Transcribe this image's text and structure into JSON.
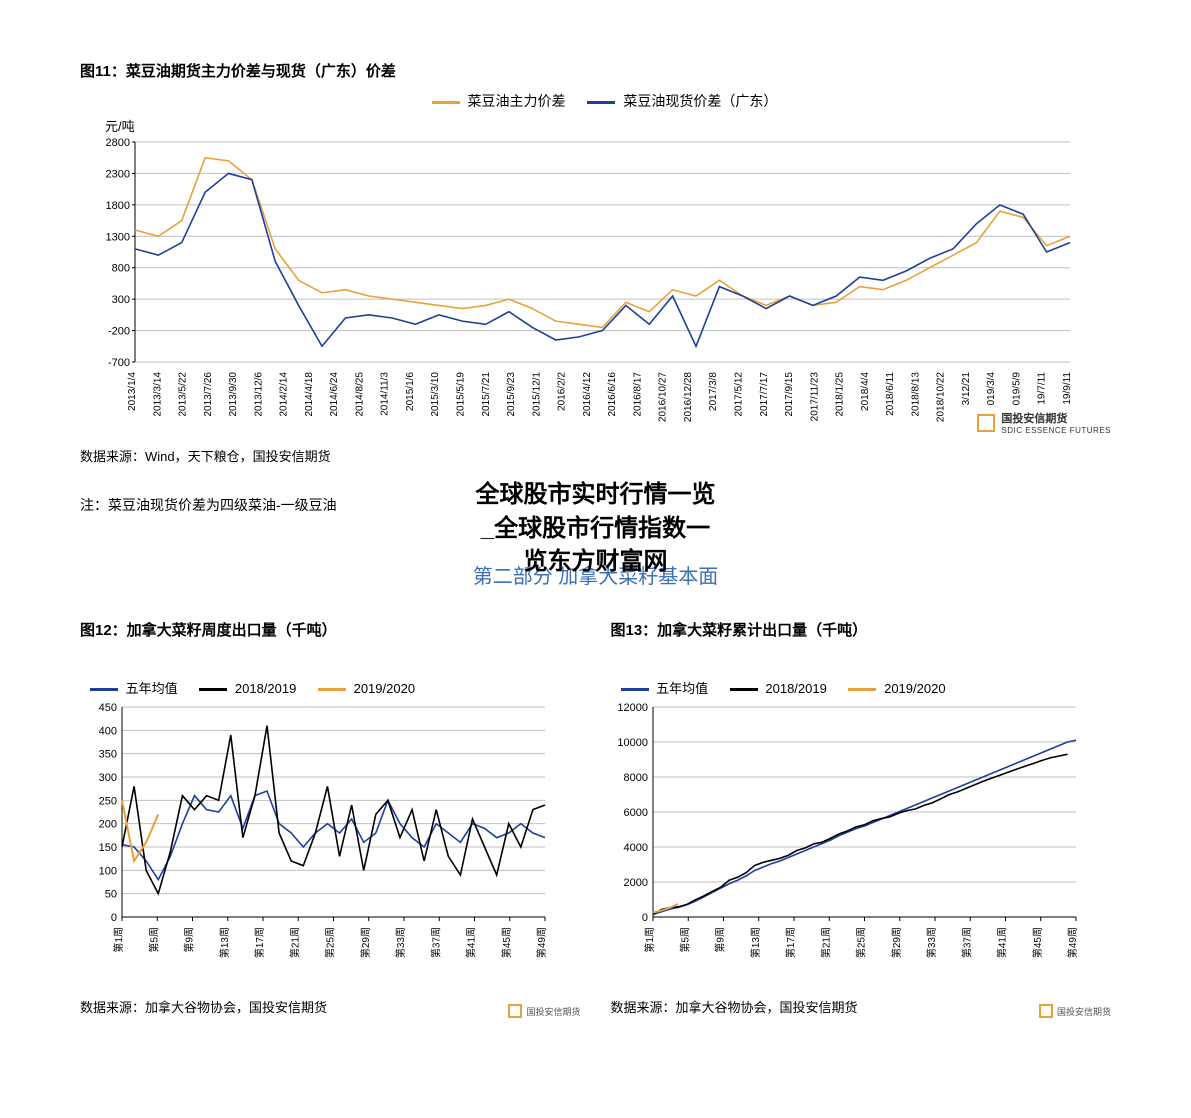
{
  "chart11": {
    "title": "图11：菜豆油期货主力价差与现货（广东）价差",
    "y_axis_label": "元/吨",
    "legend": [
      {
        "label": "菜豆油主力价差",
        "color": "#e8a13a"
      },
      {
        "label": "菜豆油现货价差（广东）",
        "color": "#1f3f9e"
      }
    ],
    "ylim": [
      -700,
      2800
    ],
    "ytick_step": 500,
    "yticks": [
      -700,
      -200,
      300,
      800,
      1300,
      1800,
      2300,
      2800
    ],
    "x_labels": [
      "2013/1/4",
      "2013/3/14",
      "2013/5/22",
      "2013/7/26",
      "2013/9/30",
      "2013/12/6",
      "2014/2/14",
      "2014/4/18",
      "2014/6/24",
      "2014/8/25",
      "2014/11/3",
      "2015/1/6",
      "2015/3/10",
      "2015/5/19",
      "2015/7/21",
      "2015/9/23",
      "2015/12/1",
      "2016/2/2",
      "2016/4/12",
      "2016/6/16",
      "2016/8/17",
      "2016/10/27",
      "2016/12/28",
      "2017/3/8",
      "2017/5/12",
      "2017/7/17",
      "2017/9/15",
      "2017/11/23",
      "2018/1/25",
      "2018/4/4",
      "2018/6/11",
      "2018/8/13",
      "2018/10/22",
      "3/12/21",
      "019/3/4",
      "019/5/9",
      "19/7/11",
      "19/9/11"
    ],
    "series_orange": [
      1400,
      1300,
      1550,
      2550,
      2500,
      2200,
      1100,
      600,
      400,
      450,
      350,
      300,
      250,
      200,
      150,
      200,
      300,
      150,
      -50,
      -100,
      -150,
      250,
      100,
      450,
      350,
      600,
      350,
      200,
      350,
      200,
      250,
      500,
      450,
      600,
      800,
      1000,
      1200,
      1700,
      1600,
      1150,
      1300
    ],
    "series_blue": [
      1100,
      1000,
      1200,
      2000,
      2300,
      2200,
      900,
      200,
      -450,
      0,
      50,
      0,
      -100,
      50,
      -50,
      -100,
      100,
      -150,
      -350,
      -300,
      -200,
      200,
      -100,
      350,
      -450,
      500,
      350,
      150,
      350,
      200,
      350,
      650,
      600,
      750,
      950,
      1100,
      1500,
      1800,
      1650,
      1050,
      1200
    ],
    "source": "数据来源：Wind，天下粮仓，国投安信期货",
    "logo_text_cn": "国投安信期货",
    "logo_text_en": "SDIC ESSENCE FUTURES",
    "note": "注：菜豆油现货价差为四级菜油-一级豆油",
    "grid_color": "#bfbfbf",
    "axis_color": "#000000",
    "background": "#ffffff"
  },
  "overlay": {
    "line1": "全球股市实时行情一览",
    "line2": "_全球股市行情指数一",
    "line3": "览东方财富网"
  },
  "section2_title": "第二部分  加拿大菜籽基本面",
  "chart12": {
    "title": "图12：加拿大菜籽周度出口量（千吨）",
    "legend": [
      {
        "label": "五年均值",
        "color": "#1f3f9e"
      },
      {
        "label": "2018/2019",
        "color": "#000000"
      },
      {
        "label": "2019/2020",
        "color": "#e8a13a"
      }
    ],
    "ylim": [
      0,
      450
    ],
    "ytick_step": 50,
    "yticks": [
      0,
      50,
      100,
      150,
      200,
      250,
      300,
      350,
      400,
      450
    ],
    "x_labels": [
      "第1周",
      "第5周",
      "第9周",
      "第13周",
      "第17周",
      "第21周",
      "第25周",
      "第29周",
      "第33周",
      "第37周",
      "第41周",
      "第45周",
      "第49周"
    ],
    "series_blue": [
      155,
      150,
      120,
      80,
      130,
      200,
      260,
      230,
      225,
      260,
      190,
      260,
      270,
      200,
      180,
      150,
      180,
      200,
      180,
      210,
      160,
      180,
      250,
      200,
      170,
      150,
      200,
      180,
      160,
      200,
      190,
      170,
      180,
      200,
      180,
      170
    ],
    "series_black": [
      150,
      280,
      100,
      50,
      140,
      260,
      230,
      260,
      250,
      390,
      170,
      260,
      410,
      180,
      120,
      110,
      180,
      280,
      130,
      240,
      100,
      220,
      250,
      170,
      230,
      120,
      230,
      130,
      90,
      210,
      150,
      90,
      200,
      150,
      230,
      240
    ],
    "series_orange": [
      250,
      120,
      160,
      220
    ],
    "source": "数据来源：加拿大谷物协会，国投安信期货",
    "logo_small": "国投安信期货",
    "grid_color": "#bfbfbf"
  },
  "chart13": {
    "title": "图13：加拿大菜籽累计出口量（千吨）",
    "legend": [
      {
        "label": "五年均值",
        "color": "#1f3f9e"
      },
      {
        "label": "2018/2019",
        "color": "#000000"
      },
      {
        "label": "2019/2020",
        "color": "#e8a13a"
      }
    ],
    "ylim": [
      0,
      12000
    ],
    "ytick_step": 2000,
    "yticks": [
      0,
      2000,
      4000,
      6000,
      8000,
      10000,
      12000
    ],
    "x_labels": [
      "第1周",
      "第5周",
      "第9周",
      "第13周",
      "第17周",
      "第21周",
      "第25周",
      "第29周",
      "第33周",
      "第37周",
      "第41周",
      "第45周",
      "第49周"
    ],
    "series_blue": [
      150,
      300,
      450,
      550,
      700,
      900,
      1150,
      1400,
      1650,
      1900,
      2100,
      2350,
      2650,
      2850,
      3050,
      3200,
      3400,
      3600,
      3800,
      4000,
      4200,
      4400,
      4650,
      4850,
      5050,
      5200,
      5400,
      5600,
      5800,
      6000,
      6200,
      6400,
      6600,
      6800,
      7000,
      7200,
      7400,
      7600,
      7800,
      8000,
      8200,
      8400,
      8600,
      8800,
      9000,
      9200,
      9400,
      9600,
      9800,
      10000,
      10100
    ],
    "series_black": [
      150,
      430,
      530,
      580,
      720,
      980,
      1200,
      1460,
      1700,
      2100,
      2270,
      2530,
      2940,
      3120,
      3240,
      3350,
      3530,
      3800,
      3950,
      4180,
      4280,
      4500,
      4750,
      4920,
      5150,
      5270,
      5500,
      5630,
      5720,
      5930,
      6080,
      6170,
      6370,
      6520,
      6750,
      6990,
      7150,
      7350,
      7550,
      7750,
      7930,
      8100,
      8280,
      8450,
      8620,
      8780,
      8950,
      9100,
      9200,
      9300
    ],
    "series_orange": [
      250,
      370,
      530,
      750
    ],
    "source": "数据来源：加拿大谷物协会，国投安信期货",
    "logo_small": "国投安信期货",
    "grid_color": "#bfbfbf"
  }
}
